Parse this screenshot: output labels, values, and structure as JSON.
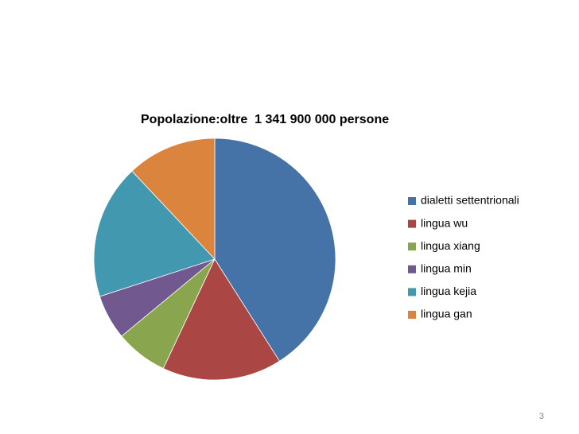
{
  "chart_data": {
    "type": "pie",
    "title": "Popolazione:oltre  1 341 900 000 persone",
    "categories": [
      "dialetti settentrionali",
      "lingua wu",
      "lingua xiang",
      "lingua min",
      "lingua kejia",
      "lingua gan"
    ],
    "values": [
      41,
      16,
      7,
      6,
      18,
      12
    ],
    "colors": [
      "#4572a7",
      "#aa4643",
      "#89a54e",
      "#71588f",
      "#4198af",
      "#db843d"
    ],
    "legend": "right"
  },
  "page_number": "3"
}
